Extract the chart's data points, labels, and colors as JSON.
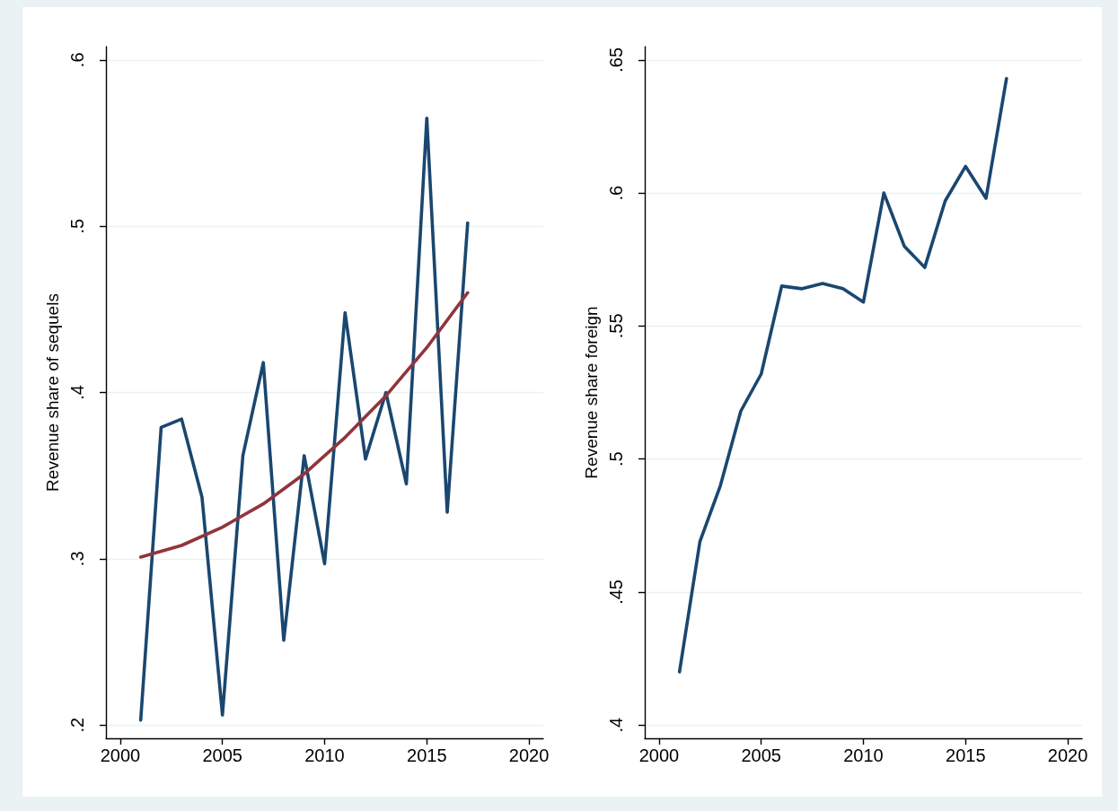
{
  "chart_data": [
    {
      "type": "line",
      "ylabel": "Revenue share of sequels",
      "xlim": [
        1999.3,
        2020.7
      ],
      "xticks": [
        2000,
        2005,
        2010,
        2015,
        2020
      ],
      "ylim": [
        0.192,
        0.608
      ],
      "yticks": [
        {
          "value": 0.2,
          "label": ".2"
        },
        {
          "value": 0.3,
          "label": ".3"
        },
        {
          "value": 0.4,
          "label": ".4"
        },
        {
          "value": 0.5,
          "label": ".5"
        },
        {
          "value": 0.6,
          "label": ".6"
        }
      ],
      "grid": "y",
      "marker": "none",
      "series": [
        {
          "color": "#1a476f",
          "x": [
            2001,
            2002,
            2003,
            2004,
            2005,
            2006,
            2007,
            2008,
            2009,
            2010,
            2011,
            2012,
            2013,
            2014,
            2015,
            2016,
            2017
          ],
          "values": [
            0.203,
            0.379,
            0.384,
            0.337,
            0.206,
            0.362,
            0.418,
            0.251,
            0.362,
            0.297,
            0.448,
            0.36,
            0.4,
            0.345,
            0.565,
            0.328,
            0.502
          ]
        },
        {
          "type": "line",
          "color": "#90353b",
          "x": [
            2001,
            2003,
            2005,
            2007,
            2009,
            2011,
            2013,
            2015,
            2017
          ],
          "values": [
            0.301,
            0.308,
            0.319,
            0.333,
            0.351,
            0.373,
            0.398,
            0.427,
            0.46
          ]
        }
      ]
    },
    {
      "type": "line",
      "ylabel": "Revenue share foreign",
      "xlim": [
        1999.3,
        2020.7
      ],
      "xticks": [
        2000,
        2005,
        2010,
        2015,
        2020
      ],
      "ylim": [
        0.395,
        0.655
      ],
      "yticks": [
        {
          "value": 0.4,
          "label": ".4"
        },
        {
          "value": 0.45,
          "label": ".45"
        },
        {
          "value": 0.5,
          "label": ".5"
        },
        {
          "value": 0.55,
          "label": ".55"
        },
        {
          "value": 0.6,
          "label": ".6"
        },
        {
          "value": 0.65,
          "label": ".65"
        }
      ],
      "grid": "y",
      "marker": "none",
      "series": [
        {
          "color": "#1a476f",
          "x": [
            2001,
            2002,
            2003,
            2004,
            2005,
            2006,
            2007,
            2008,
            2009,
            2010,
            2011,
            2012,
            2013,
            2014,
            2015,
            2016,
            2017
          ],
          "values": [
            0.42,
            0.469,
            0.49,
            0.518,
            0.532,
            0.565,
            0.564,
            0.566,
            0.564,
            0.559,
            0.6,
            0.58,
            0.572,
            0.597,
            0.61,
            0.598,
            0.643
          ]
        }
      ]
    }
  ]
}
